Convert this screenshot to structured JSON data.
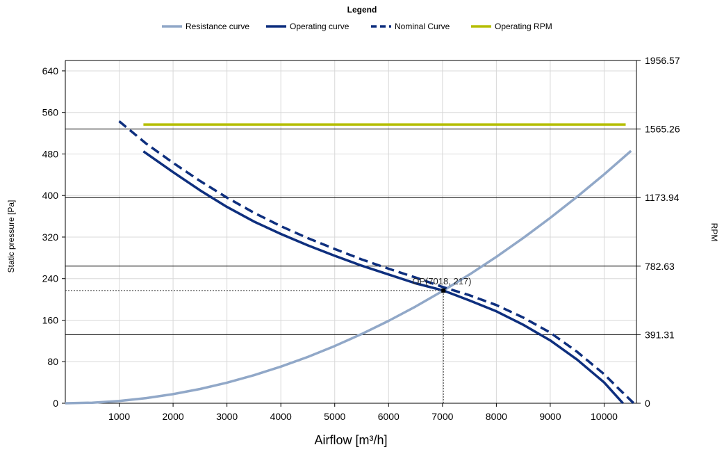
{
  "chart_data": {
    "type": "line",
    "legend": {
      "title": "Legend",
      "placement": "top-center",
      "entries": [
        {
          "label": "Resistance curve",
          "series": "resistance"
        },
        {
          "label": "Operating curve",
          "series": "operating"
        },
        {
          "label": "Nominal Curve",
          "series": "nominal"
        },
        {
          "label": "Operating RPM",
          "series": "rpm"
        }
      ]
    },
    "xlabel": "Airflow [m³/h]",
    "ylabel": "Static pressure [Pa]",
    "y2label": "RPM",
    "xlim": [
      0,
      10600
    ],
    "ylim": [
      0,
      660
    ],
    "y2lim": [
      0,
      1956.57
    ],
    "x_ticks": [
      1000,
      2000,
      3000,
      4000,
      5000,
      6000,
      7000,
      8000,
      9000,
      10000
    ],
    "y_ticks": [
      0,
      80,
      160,
      240,
      320,
      400,
      480,
      560,
      640
    ],
    "y2_ticks": [
      "0",
      "391.31",
      "782.63",
      "1173.94",
      "1565.26",
      "1956.57"
    ],
    "grid": true,
    "colors": {
      "resistance": "#91a8c8",
      "operating": "#0e2f7e",
      "nominal": "#0e2f7e",
      "rpm": "#b5be00",
      "gridline": "#d8d8d8",
      "rpm_gridline": "#000000"
    },
    "series": [
      {
        "name": "Resistance curve",
        "key": "resistance",
        "style": "solid",
        "x": [
          0,
          500,
          1000,
          1500,
          2000,
          2500,
          3000,
          3500,
          4000,
          4500,
          5000,
          5500,
          6000,
          6500,
          7018,
          7500,
          8000,
          8500,
          9000,
          9500,
          10000,
          10500
        ],
        "y": [
          0,
          1.1,
          4.4,
          9.9,
          17.6,
          27.5,
          39.6,
          53.9,
          70.5,
          89.2,
          110.2,
          133.3,
          158.6,
          186.2,
          217,
          247.8,
          282,
          318.4,
          356.9,
          397.7,
          440.7,
          485.9
        ]
      },
      {
        "name": "Operating curve",
        "key": "operating",
        "style": "solid",
        "x": [
          1450,
          2000,
          2500,
          3000,
          3500,
          4000,
          4500,
          5000,
          5500,
          6000,
          6500,
          7018,
          7500,
          8000,
          8500,
          9000,
          9500,
          10000,
          10350
        ],
        "y": [
          485,
          445,
          410,
          378,
          350,
          326,
          304,
          284,
          265,
          248,
          231,
          217,
          198,
          177,
          151,
          121,
          84,
          40,
          0
        ]
      },
      {
        "name": "Nominal Curve",
        "key": "nominal",
        "style": "dashed",
        "x": [
          1000,
          1500,
          2000,
          2500,
          3000,
          3500,
          4000,
          4500,
          5000,
          5500,
          6000,
          6500,
          7000,
          7500,
          8000,
          8500,
          9000,
          9500,
          10000,
          10300,
          10550
        ],
        "y": [
          543,
          500,
          463,
          428,
          396,
          367,
          341,
          318,
          297,
          277,
          259,
          242,
          224,
          208,
          189,
          165,
          136,
          99,
          56,
          25,
          0
        ]
      },
      {
        "name": "Operating RPM",
        "key": "rpm",
        "style": "solid",
        "axis": "right",
        "x": [
          1450,
          10400
        ],
        "y": [
          1591,
          1591
        ]
      }
    ],
    "operating_point": {
      "x": 7018,
      "y": 217,
      "label": "OP(7018, 217)"
    }
  }
}
